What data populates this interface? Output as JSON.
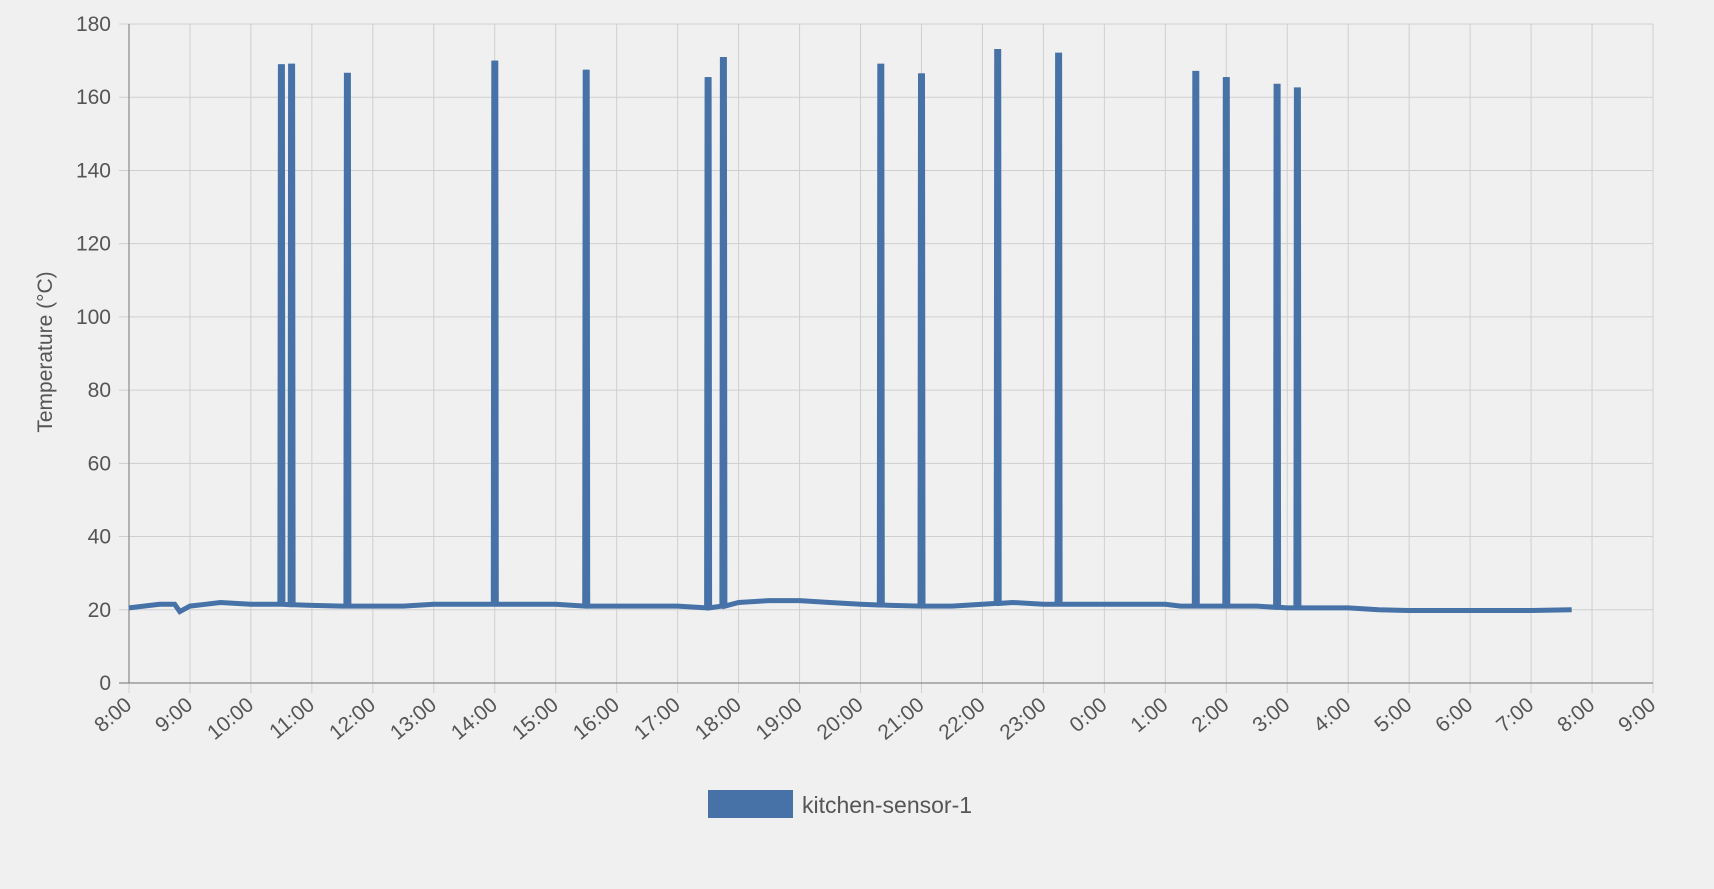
{
  "chart_data": {
    "type": "line",
    "title": "",
    "xlabel": "",
    "ylabel": "Temperature (°C)",
    "ylim": [
      0,
      180
    ],
    "yticks": [
      0,
      20,
      40,
      60,
      80,
      100,
      120,
      140,
      160,
      180
    ],
    "xticks": [
      "8:00",
      "9:00",
      "10:00",
      "11:00",
      "12:00",
      "13:00",
      "14:00",
      "15:00",
      "16:00",
      "17:00",
      "18:00",
      "19:00",
      "20:00",
      "21:00",
      "22:00",
      "23:00",
      "0:00",
      "1:00",
      "2:00",
      "3:00",
      "4:00",
      "5:00",
      "6:00",
      "7:00",
      "8:00",
      "9:00"
    ],
    "grid": true,
    "legend_position": "bottom",
    "series_color": "#4672a8",
    "series": [
      {
        "name": "kitchen-sensor-1",
        "baseline_points": [
          [
            "8:50",
            19.5
          ],
          [
            "9:00",
            21.0
          ],
          [
            "9:15",
            21.5
          ],
          [
            "9:30",
            22.0
          ],
          [
            "10:00",
            21.5
          ],
          [
            "10:30",
            21.5
          ],
          [
            "11:00",
            21.2
          ],
          [
            "11:30",
            21.0
          ],
          [
            "12:00",
            21.0
          ],
          [
            "12:30",
            21.0
          ],
          [
            "13:00",
            21.5
          ],
          [
            "14:00",
            21.5
          ],
          [
            "15:00",
            21.5
          ],
          [
            "15:30",
            21.0
          ],
          [
            "16:00",
            21.0
          ],
          [
            "17:00",
            21.0
          ],
          [
            "17:30",
            20.5
          ],
          [
            "17:45",
            21.0
          ],
          [
            "18:00",
            22.0
          ],
          [
            "18:30",
            22.5
          ],
          [
            "19:00",
            22.5
          ],
          [
            "19:30",
            22.0
          ],
          [
            "20:00",
            21.5
          ],
          [
            "20:30",
            21.2
          ],
          [
            "21:00",
            21.0
          ],
          [
            "21:30",
            21.0
          ],
          [
            "22:00",
            21.5
          ],
          [
            "22:30",
            22.0
          ],
          [
            "23:00",
            21.5
          ],
          [
            "0:00",
            21.5
          ],
          [
            "1:00",
            21.5
          ],
          [
            "1:15",
            21.0
          ],
          [
            "2:00",
            21.0
          ],
          [
            "2:30",
            21.0
          ],
          [
            "3:00",
            20.5
          ],
          [
            "4:00",
            20.5
          ],
          [
            "4:30",
            20.0
          ],
          [
            "5:00",
            19.8
          ],
          [
            "6:00",
            19.8
          ],
          [
            "7:00",
            19.8
          ],
          [
            "7:40",
            20.0
          ],
          [
            "8:00",
            20.5
          ],
          [
            "8:30",
            21.5
          ],
          [
            "8:45",
            21.5
          ]
        ],
        "spikes": [
          {
            "time": "10:30",
            "value": 169
          },
          {
            "time": "10:40",
            "value": 168.5
          },
          {
            "time": "11:35",
            "value": 166
          },
          {
            "time": "14:00",
            "value": 170
          },
          {
            "time": "15:30",
            "value": 167.5
          },
          {
            "time": "17:30",
            "value": 165.5
          },
          {
            "time": "17:45",
            "value": 171
          },
          {
            "time": "20:20",
            "value": 168.5
          },
          {
            "time": "21:00",
            "value": 166.5
          },
          {
            "time": "22:15",
            "value": 172.5
          },
          {
            "time": "23:15",
            "value": 171.5
          },
          {
            "time": "1:30",
            "value": 166.5
          },
          {
            "time": "2:00",
            "value": 165.5
          },
          {
            "time": "2:50",
            "value": 163
          },
          {
            "time": "3:10",
            "value": 162
          }
        ]
      }
    ]
  }
}
